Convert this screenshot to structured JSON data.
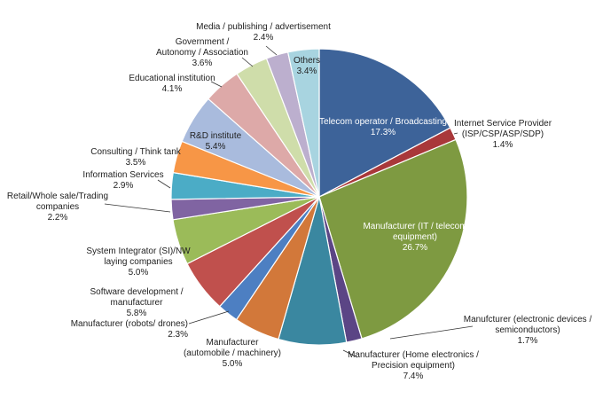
{
  "chart_data": {
    "type": "pie",
    "title": "",
    "slices": [
      {
        "label_lines": [
          "Telecom operator / Broadcasting"
        ],
        "value_text": "17.3%",
        "value": 17.3,
        "color": "#3D6399"
      },
      {
        "label_lines": [
          "Internet Service Provider",
          "(ISP/CSP/ASP/SDP)"
        ],
        "value_text": "1.4%",
        "value": 1.4,
        "color": "#A9383A"
      },
      {
        "label_lines": [
          "Manufacturer (IT / telecom",
          "equipment)"
        ],
        "value_text": "26.7%",
        "value": 26.7,
        "color": "#7E9A41"
      },
      {
        "label_lines": [
          "Manufcturer (electronic devices /",
          "semiconductors)"
        ],
        "value_text": "1.7%",
        "value": 1.7,
        "color": "#5B4585"
      },
      {
        "label_lines": [
          "Manufacturer (Home electronics /",
          "Precision equipment)"
        ],
        "value_text": "7.4%",
        "value": 7.4,
        "color": "#3A87A0"
      },
      {
        "label_lines": [
          "Manufacturer",
          "(automobile / machinery)"
        ],
        "value_text": "5.0%",
        "value": 5.0,
        "color": "#D2783A"
      },
      {
        "label_lines": [
          "Manufacturer (robots/ drones)"
        ],
        "value_text": "2.3%",
        "value": 2.3,
        "color": "#4D7FC2"
      },
      {
        "label_lines": [
          "Software development /",
          "manufacturer"
        ],
        "value_text": "5.8%",
        "value": 5.8,
        "color": "#C0504D"
      },
      {
        "label_lines": [
          "System Integrator (SI)/NW",
          "laying companies"
        ],
        "value_text": "5.0%",
        "value": 5.0,
        "color": "#9BBB59"
      },
      {
        "label_lines": [
          "Retail/Whole sale/Trading",
          "companies"
        ],
        "value_text": "2.2%",
        "value": 2.2,
        "color": "#8064A2"
      },
      {
        "label_lines": [
          "Information Services"
        ],
        "value_text": "2.9%",
        "value": 2.9,
        "color": "#4BACC6"
      },
      {
        "label_lines": [
          "Consulting / Think tank"
        ],
        "value_text": "3.5%",
        "value": 3.5,
        "color": "#F79646"
      },
      {
        "label_lines": [
          "R&D institute"
        ],
        "value_text": "5.4%",
        "value": 5.4,
        "color": "#A9BBDD"
      },
      {
        "label_lines": [
          "Educational institution"
        ],
        "value_text": "4.1%",
        "value": 4.1,
        "color": "#DDA9A8"
      },
      {
        "label_lines": [
          "Government /",
          "Autonomy / Association"
        ],
        "value_text": "3.6%",
        "value": 3.6,
        "color": "#CFDDAA"
      },
      {
        "label_lines": [
          "Media / publishing / advertisement"
        ],
        "value_text": "2.4%",
        "value": 2.4,
        "color": "#BCAFCE"
      },
      {
        "label_lines": [
          "Others"
        ],
        "value_text": "3.4%",
        "value": 3.4,
        "color": "#A8D4E0"
      }
    ]
  }
}
